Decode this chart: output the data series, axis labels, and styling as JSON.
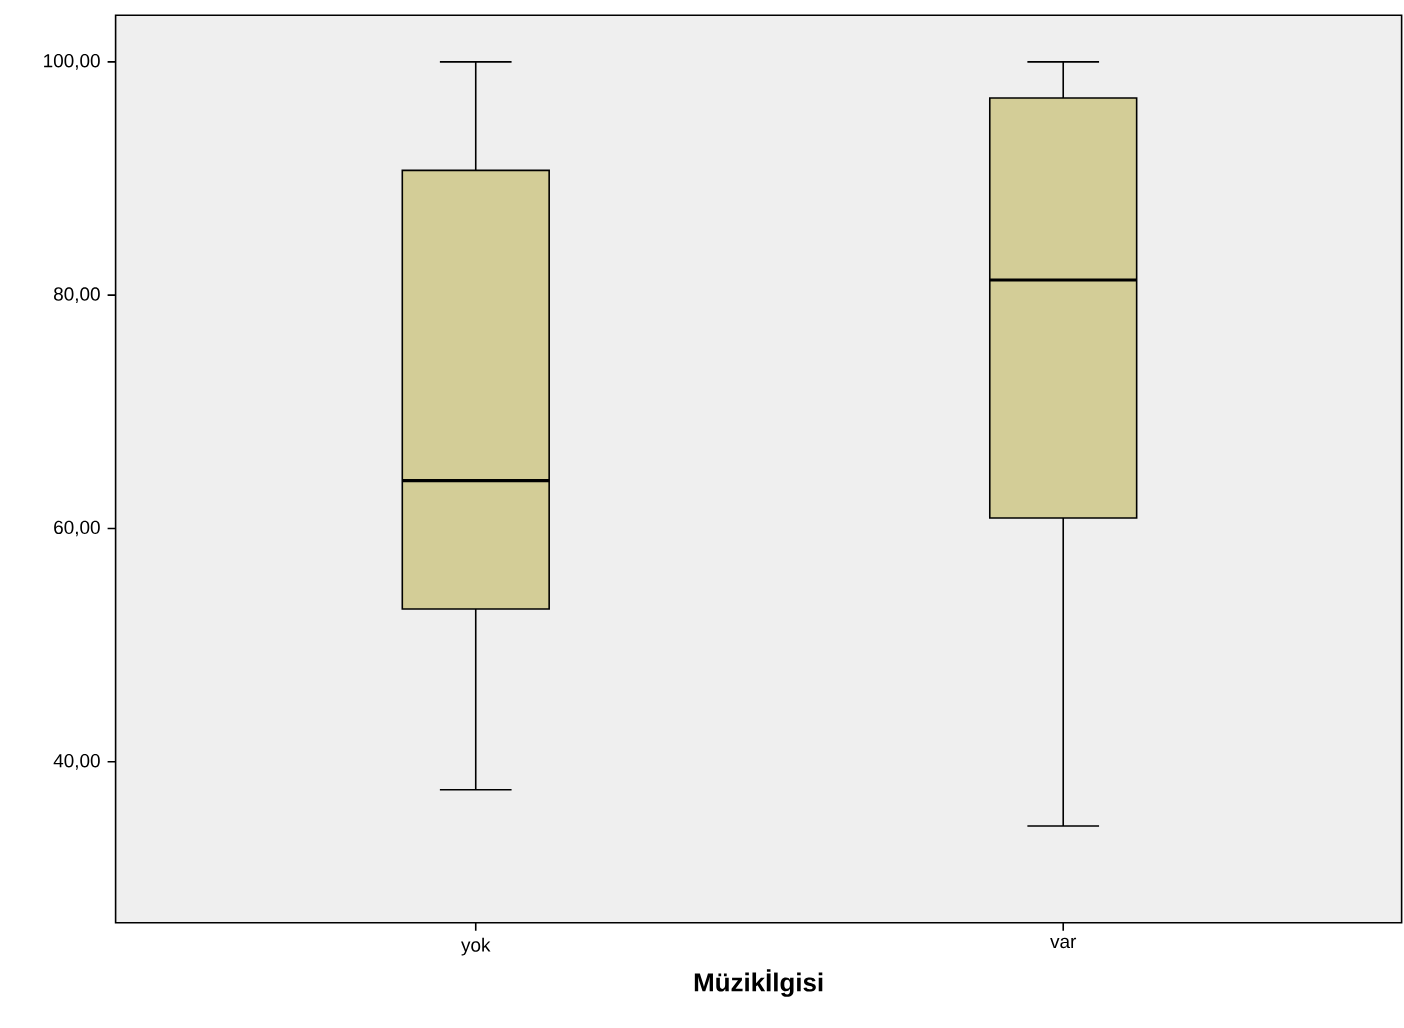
{
  "chart_data": {
    "type": "box",
    "xlabel": "Müzikİlgisi",
    "categories": [
      "yok",
      "var"
    ],
    "color": "#d3cd97",
    "boxes": [
      {
        "low": 37.6,
        "q1": 53.1,
        "median": 64.1,
        "q3": 90.7,
        "high": 100
      },
      {
        "low": 34.5,
        "q1": 60.9,
        "median": 81.3,
        "q3": 96.9,
        "high": 100
      }
    ],
    "ylim": [
      26.2,
      104.0
    ],
    "yticks": [
      {
        "value": 40,
        "label": "40,00"
      },
      {
        "value": 60,
        "label": "60,00"
      },
      {
        "value": 80,
        "label": "80,00"
      },
      {
        "value": 100,
        "label": "100,00"
      }
    ]
  }
}
